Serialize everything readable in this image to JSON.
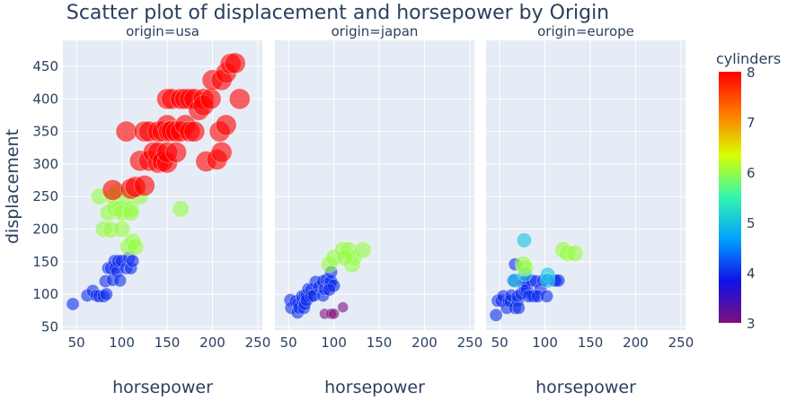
{
  "chart_data": {
    "type": "scatter",
    "title": "Scatter plot of displacement and horsepower by Origin",
    "xlabel": "horsepower",
    "ylabel": "displacement",
    "xlim": [
      35,
      255
    ],
    "ylim": [
      45,
      490
    ],
    "x_ticks": [
      50,
      100,
      150,
      200,
      250
    ],
    "y_ticks": [
      50,
      100,
      150,
      200,
      250,
      300,
      350,
      400,
      450
    ],
    "grid": true,
    "colorbar": {
      "title": "cylinders",
      "min": 3,
      "max": 8,
      "ticks": [
        3,
        4,
        5,
        6,
        7,
        8
      ],
      "colorscale": [
        "#7f0f7d",
        "#1010e8",
        "#00a0ff",
        "#32f5b0",
        "#d8ff00",
        "#ff7a00",
        "#ff0000"
      ]
    },
    "facets": [
      {
        "label": "origin=usa",
        "points": [
          [
            46,
            85,
            4
          ],
          [
            62,
            98,
            4
          ],
          [
            68,
            105,
            4
          ],
          [
            72,
            98,
            4
          ],
          [
            75,
            97,
            4
          ],
          [
            80,
            97,
            4
          ],
          [
            82,
            120,
            4
          ],
          [
            83,
            100,
            4
          ],
          [
            85,
            140,
            4
          ],
          [
            88,
            140,
            4
          ],
          [
            90,
            122,
            4
          ],
          [
            92,
            151,
            4
          ],
          [
            93,
            140,
            4
          ],
          [
            95,
            135,
            4
          ],
          [
            96,
            151,
            4
          ],
          [
            98,
            121,
            4
          ],
          [
            100,
            151,
            4
          ],
          [
            105,
            140,
            4
          ],
          [
            108,
            156,
            4
          ],
          [
            110,
            140,
            4
          ],
          [
            112,
            151,
            4
          ],
          [
            75,
            250,
            6
          ],
          [
            80,
            200,
            6
          ],
          [
            85,
            225,
            6
          ],
          [
            88,
            199,
            6
          ],
          [
            90,
            250,
            6
          ],
          [
            92,
            232,
            6
          ],
          [
            95,
            258,
            6
          ],
          [
            98,
            231,
            6
          ],
          [
            100,
            225,
            6
          ],
          [
            100,
            200,
            6
          ],
          [
            105,
            250,
            6
          ],
          [
            107,
            173,
            6
          ],
          [
            110,
            231,
            6
          ],
          [
            110,
            225,
            6
          ],
          [
            112,
            181,
            6
          ],
          [
            115,
            173,
            6
          ],
          [
            120,
            250,
            6
          ],
          [
            165,
            231,
            6
          ],
          [
            90,
            260,
            8
          ],
          [
            105,
            350,
            8
          ],
          [
            110,
            262,
            8
          ],
          [
            115,
            265,
            8
          ],
          [
            120,
            305,
            8
          ],
          [
            125,
            350,
            8
          ],
          [
            125,
            267,
            8
          ],
          [
            130,
            305,
            8
          ],
          [
            130,
            350,
            8
          ],
          [
            135,
            318,
            8
          ],
          [
            140,
            302,
            8
          ],
          [
            140,
            318,
            8
          ],
          [
            140,
            350,
            8
          ],
          [
            145,
            304,
            8
          ],
          [
            145,
            350,
            8
          ],
          [
            150,
            302,
            8
          ],
          [
            150,
            318,
            8
          ],
          [
            150,
            400,
            8
          ],
          [
            150,
            360,
            8
          ],
          [
            152,
            350,
            8
          ],
          [
            155,
            400,
            8
          ],
          [
            155,
            351,
            8
          ],
          [
            160,
            318,
            8
          ],
          [
            160,
            350,
            8
          ],
          [
            165,
            350,
            8
          ],
          [
            165,
            400,
            8
          ],
          [
            170,
            400,
            8
          ],
          [
            170,
            360,
            8
          ],
          [
            175,
            350,
            8
          ],
          [
            175,
            400,
            8
          ],
          [
            180,
            350,
            8
          ],
          [
            180,
            400,
            8
          ],
          [
            185,
            383,
            8
          ],
          [
            190,
            400,
            8
          ],
          [
            190,
            390,
            8
          ],
          [
            193,
            304,
            8
          ],
          [
            198,
            400,
            8
          ],
          [
            200,
            429,
            8
          ],
          [
            205,
            307,
            8
          ],
          [
            208,
            350,
            8
          ],
          [
            210,
            429,
            8
          ],
          [
            210,
            318,
            8
          ],
          [
            215,
            360,
            8
          ],
          [
            215,
            440,
            8
          ],
          [
            220,
            454,
            8
          ],
          [
            225,
            455,
            8
          ],
          [
            230,
            400,
            8
          ]
        ]
      },
      {
        "label": "origin=japan",
        "points": [
          [
            52,
            91,
            4
          ],
          [
            53,
            79,
            4
          ],
          [
            58,
            89,
            4
          ],
          [
            60,
            72,
            4
          ],
          [
            61,
            86,
            4
          ],
          [
            62,
            79,
            4
          ],
          [
            65,
            91,
            4
          ],
          [
            65,
            97,
            4
          ],
          [
            67,
            79,
            4
          ],
          [
            68,
            98,
            4
          ],
          [
            68,
            85,
            4
          ],
          [
            70,
            97,
            4
          ],
          [
            70,
            91,
            4
          ],
          [
            72,
            108,
            4
          ],
          [
            75,
            107,
            4
          ],
          [
            75,
            97,
            4
          ],
          [
            78,
            98,
            4
          ],
          [
            80,
            119,
            4
          ],
          [
            84,
            112,
            4
          ],
          [
            88,
            98,
            4
          ],
          [
            88,
            120,
            4
          ],
          [
            90,
            108,
            4
          ],
          [
            92,
            122,
            4
          ],
          [
            95,
            119,
            4
          ],
          [
            96,
            113,
            4
          ],
          [
            97,
            120,
            4
          ],
          [
            100,
            113,
            4
          ],
          [
            95,
            107,
            4
          ],
          [
            97,
            134,
            4
          ],
          [
            90,
            70,
            3
          ],
          [
            97,
            70,
            3
          ],
          [
            100,
            70,
            3
          ],
          [
            110,
            80,
            3
          ],
          [
            95,
            146,
            6
          ],
          [
            100,
            156,
            6
          ],
          [
            110,
            168,
            6
          ],
          [
            116,
            168,
            6
          ],
          [
            120,
            146,
            6
          ],
          [
            122,
            156,
            6
          ],
          [
            132,
            168,
            6
          ],
          [
            112,
            156,
            6
          ]
        ]
      },
      {
        "label": "origin=europe",
        "points": [
          [
            46,
            68,
            4
          ],
          [
            48,
            90,
            4
          ],
          [
            52,
            90,
            4
          ],
          [
            54,
            97,
            4
          ],
          [
            58,
            79,
            4
          ],
          [
            60,
            89,
            4
          ],
          [
            62,
            90,
            4
          ],
          [
            63,
            98,
            4
          ],
          [
            65,
            121,
            4
          ],
          [
            67,
            79,
            4
          ],
          [
            67,
            146,
            4
          ],
          [
            70,
            90,
            4
          ],
          [
            70,
            97,
            4
          ],
          [
            71,
            79,
            4
          ],
          [
            74,
            101,
            4
          ],
          [
            76,
            116,
            4
          ],
          [
            78,
            105,
            4
          ],
          [
            78,
            120,
            4
          ],
          [
            80,
            107,
            4
          ],
          [
            85,
            121,
            4
          ],
          [
            86,
            98,
            4
          ],
          [
            88,
            97,
            4
          ],
          [
            90,
            120,
            4
          ],
          [
            95,
            108,
            4
          ],
          [
            98,
            121,
            4
          ],
          [
            110,
            121,
            4
          ],
          [
            112,
            121,
            4
          ],
          [
            115,
            121,
            4
          ],
          [
            82,
            97,
            4
          ],
          [
            92,
            97,
            4
          ],
          [
            102,
            97,
            4
          ],
          [
            67,
            121,
            5
          ],
          [
            77,
            183,
            5
          ],
          [
            103,
            130,
            5
          ],
          [
            103,
            121,
            5
          ],
          [
            78,
            131,
            5
          ],
          [
            76,
            146,
            6
          ],
          [
            78,
            141,
            6
          ],
          [
            120,
            168,
            6
          ],
          [
            125,
            163,
            6
          ],
          [
            133,
            163,
            6
          ]
        ]
      }
    ]
  }
}
